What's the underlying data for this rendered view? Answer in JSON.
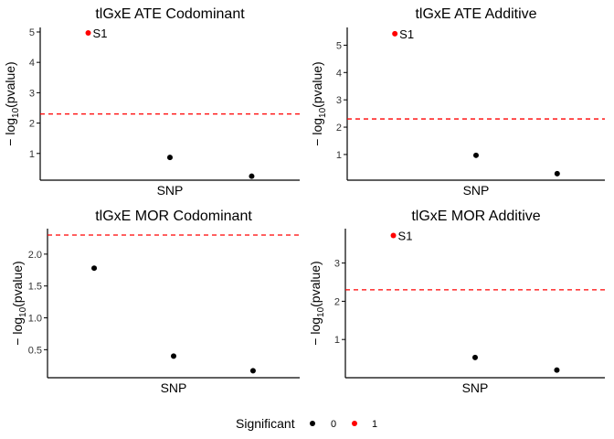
{
  "chart_data": [
    {
      "type": "scatter",
      "title": "tlGxE ATE Codominant",
      "xlabel": "SNP",
      "ylabel_prefix": "− log",
      "ylabel_sub": "10",
      "ylabel_suffix": "(pvalue)",
      "ylim": [
        0.12,
        5.15
      ],
      "yticks": [
        1,
        2,
        3,
        4,
        5
      ],
      "threshold": 2.3,
      "points": [
        {
          "snp": 1,
          "y": 4.97,
          "significant": 1,
          "label": "S1"
        },
        {
          "snp": 2,
          "y": 0.87,
          "significant": 0,
          "label": ""
        },
        {
          "snp": 3,
          "y": 0.25,
          "significant": 0,
          "label": ""
        }
      ]
    },
    {
      "type": "scatter",
      "title": "tlGxE ATE Additive",
      "xlabel": "SNP",
      "ylabel_prefix": "− log",
      "ylabel_sub": "10",
      "ylabel_suffix": "(pvalue)",
      "ylim": [
        0.06,
        5.65
      ],
      "yticks": [
        1,
        2,
        3,
        4,
        5
      ],
      "threshold": 2.3,
      "points": [
        {
          "snp": 1,
          "y": 5.42,
          "significant": 1,
          "label": "S1"
        },
        {
          "snp": 2,
          "y": 0.97,
          "significant": 0,
          "label": ""
        },
        {
          "snp": 3,
          "y": 0.3,
          "significant": 0,
          "label": ""
        }
      ]
    },
    {
      "type": "scatter",
      "title": "tlGxE MOR Codominant",
      "xlabel": "SNP",
      "ylabel_prefix": "− log",
      "ylabel_sub": "10",
      "ylabel_suffix": "(pvalue)",
      "ylim": [
        0.06,
        2.4
      ],
      "yticks": [
        0.5,
        1.0,
        1.5,
        2.0
      ],
      "tick_decimals": 1,
      "threshold": 2.3,
      "points": [
        {
          "snp": 1,
          "y": 1.78,
          "significant": 0,
          "label": ""
        },
        {
          "snp": 2,
          "y": 0.4,
          "significant": 0,
          "label": ""
        },
        {
          "snp": 3,
          "y": 0.17,
          "significant": 0,
          "label": ""
        }
      ]
    },
    {
      "type": "scatter",
      "title": "tlGxE MOR Additive",
      "xlabel": "SNP",
      "ylabel_prefix": "− log",
      "ylabel_sub": "10",
      "ylabel_suffix": "(pvalue)",
      "ylim": [
        0.0,
        3.9
      ],
      "yticks": [
        1,
        2,
        3
      ],
      "threshold": 2.3,
      "points": [
        {
          "snp": 1,
          "y": 3.72,
          "significant": 1,
          "label": "S1"
        },
        {
          "snp": 2,
          "y": 0.53,
          "significant": 0,
          "label": ""
        },
        {
          "snp": 3,
          "y": 0.2,
          "significant": 0,
          "label": ""
        }
      ]
    }
  ],
  "legend": {
    "title": "Significant",
    "entries": [
      {
        "label": "0",
        "color": "#000000"
      },
      {
        "label": "1",
        "color": "#ff0000"
      }
    ]
  },
  "colors": {
    "significant": "#ff0000",
    "not_significant": "#000000",
    "threshold_line": "#ff0000",
    "axis": "#000000"
  }
}
